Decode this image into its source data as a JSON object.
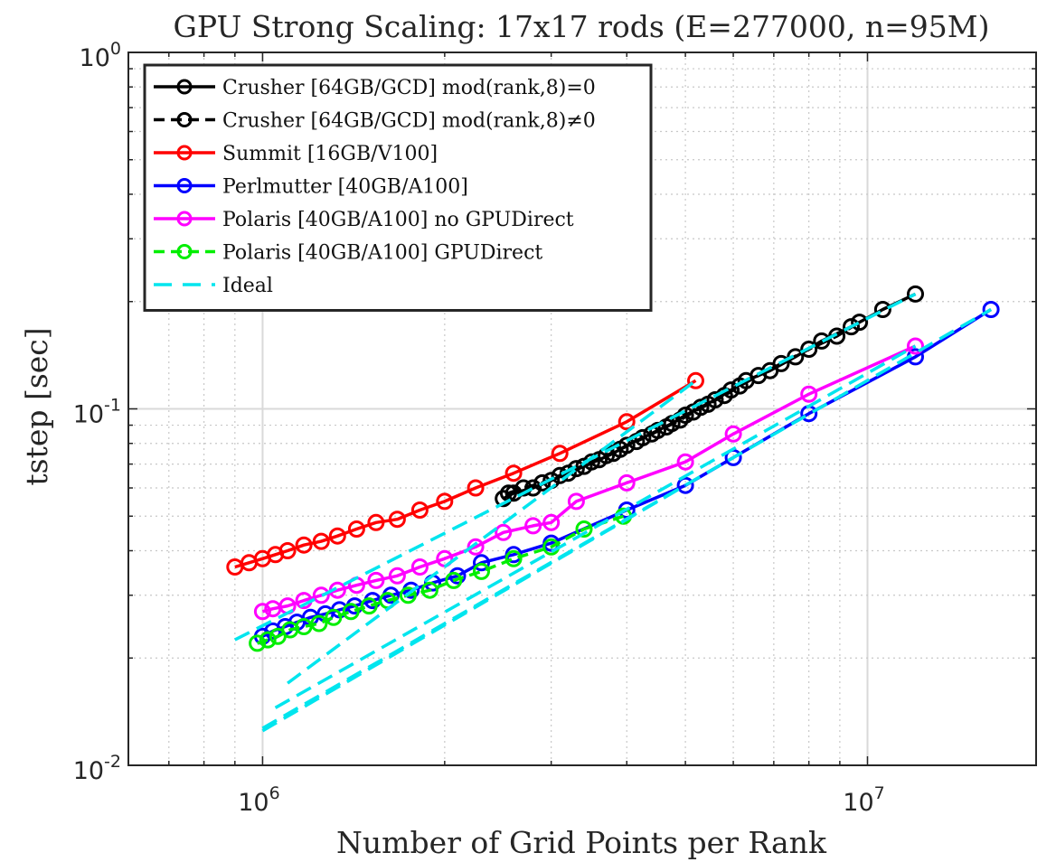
{
  "chart_data": {
    "type": "line",
    "title": "GPU Strong Scaling: 17x17 rods (E=277000, n=95M)",
    "xlabel": "Number of Grid Points per Rank",
    "ylabel": "tstep [sec]",
    "xscale": "log",
    "yscale": "log",
    "xlim": [
      600000,
      19000000
    ],
    "ylim": [
      0.01,
      1
    ],
    "grid": true,
    "legend_position": "top-left",
    "x_ticks": [
      {
        "value": 1000000,
        "base": "10",
        "exp": "6"
      },
      {
        "value": 10000000,
        "base": "10",
        "exp": "7"
      }
    ],
    "y_ticks": [
      {
        "value": 0.01,
        "base": "10",
        "exp": "-2"
      },
      {
        "value": 0.1,
        "base": "10",
        "exp": "-1"
      },
      {
        "value": 1,
        "base": "10",
        "exp": "0"
      }
    ],
    "series": [
      {
        "name": "Crusher [64GB/GCD] mod(rank,8)=0",
        "color": "#000000",
        "dash": "solid",
        "marker": "circle",
        "x": [
          2500000,
          2600000,
          2800000,
          3000000,
          3200000,
          3400000,
          3600000,
          3800000,
          4000000,
          4250000,
          4500000,
          4750000,
          5000000,
          5300000,
          5600000,
          5950000,
          6300000,
          6900000,
          7600000,
          8400000,
          9400000,
          10600000,
          12000000
        ],
        "y": [
          0.056,
          0.058,
          0.06,
          0.063,
          0.066,
          0.069,
          0.072,
          0.075,
          0.079,
          0.083,
          0.087,
          0.091,
          0.096,
          0.101,
          0.106,
          0.113,
          0.12,
          0.128,
          0.14,
          0.155,
          0.17,
          0.19,
          0.21
        ]
      },
      {
        "name": "Crusher [64GB/GCD] mod(rank,8)≠0",
        "color": "#000000",
        "dash": "dashed",
        "marker": "circle",
        "x": [
          2550000,
          2700000,
          2900000,
          3100000,
          3300000,
          3500000,
          3700000,
          3900000,
          4150000,
          4400000,
          4650000,
          4900000,
          5150000,
          5450000,
          5800000,
          6150000,
          6600000,
          7200000,
          8000000,
          8900000,
          9700000
        ],
        "y": [
          0.058,
          0.06,
          0.062,
          0.065,
          0.068,
          0.071,
          0.074,
          0.077,
          0.081,
          0.085,
          0.089,
          0.093,
          0.098,
          0.103,
          0.109,
          0.116,
          0.124,
          0.134,
          0.147,
          0.16,
          0.175
        ]
      },
      {
        "name": "Summit [16GB/V100]",
        "color": "#ff0000",
        "dash": "solid",
        "marker": "circle",
        "x": [
          900000,
          950000,
          1000000,
          1050000,
          1100000,
          1170000,
          1250000,
          1330000,
          1430000,
          1540000,
          1670000,
          1820000,
          2000000,
          2250000,
          2600000,
          3100000,
          4000000,
          5200000
        ],
        "y": [
          0.036,
          0.037,
          0.038,
          0.039,
          0.04,
          0.0415,
          0.0425,
          0.044,
          0.046,
          0.048,
          0.049,
          0.052,
          0.055,
          0.06,
          0.066,
          0.075,
          0.092,
          0.12
        ]
      },
      {
        "name": "Perlmutter [40GB/A100]",
        "color": "#0000ff",
        "dash": "solid",
        "marker": "circle",
        "x": [
          1000000,
          1040000,
          1090000,
          1140000,
          1200000,
          1270000,
          1340000,
          1420000,
          1520000,
          1630000,
          1760000,
          1910000,
          2100000,
          2300000,
          2600000,
          3000000,
          4000000,
          5000000,
          6000000,
          8000000,
          12000000,
          16000000
        ],
        "y": [
          0.023,
          0.0238,
          0.0245,
          0.0252,
          0.026,
          0.0266,
          0.0273,
          0.028,
          0.029,
          0.03,
          0.031,
          0.0325,
          0.034,
          0.037,
          0.039,
          0.042,
          0.052,
          0.061,
          0.073,
          0.097,
          0.14,
          0.19
        ]
      },
      {
        "name": "Polaris [40GB/A100] no GPUDirect",
        "color": "#ff00ff",
        "dash": "solid",
        "marker": "circle",
        "x": [
          1000000,
          1040000,
          1100000,
          1170000,
          1250000,
          1330000,
          1430000,
          1540000,
          1670000,
          1820000,
          2000000,
          2250000,
          2500000,
          2800000,
          3000000,
          3300000,
          4000000,
          5000000,
          6000000,
          8000000,
          12000000
        ],
        "y": [
          0.027,
          0.0275,
          0.028,
          0.029,
          0.03,
          0.031,
          0.032,
          0.033,
          0.034,
          0.036,
          0.038,
          0.041,
          0.045,
          0.047,
          0.048,
          0.055,
          0.062,
          0.071,
          0.085,
          0.11,
          0.15
        ]
      },
      {
        "name": "Polaris [40GB/A100] GPUDirect",
        "color": "#00ee00",
        "dash": "dashed",
        "marker": "circle",
        "x": [
          980000,
          1020000,
          1060000,
          1110000,
          1170000,
          1240000,
          1310000,
          1400000,
          1500000,
          1610000,
          1740000,
          1890000,
          2070000,
          2300000,
          2600000,
          3000000,
          3400000,
          3950000
        ],
        "y": [
          0.022,
          0.0225,
          0.023,
          0.024,
          0.0245,
          0.025,
          0.026,
          0.027,
          0.028,
          0.029,
          0.03,
          0.031,
          0.033,
          0.035,
          0.038,
          0.041,
          0.046,
          0.05
        ]
      },
      {
        "name": "Ideal",
        "color": "#00e5ee",
        "dash": "dashed",
        "marker": "none",
        "lines": [
          {
            "x": [
              900000,
              12000000
            ],
            "y": [
              0.0225,
              0.21
            ]
          },
          {
            "x": [
              1000000,
              16000000
            ],
            "y": [
              0.0127,
              0.19
            ]
          },
          {
            "x": [
              1050000,
              12000000
            ],
            "y": [
              0.0145,
              0.15
            ]
          },
          {
            "x": [
              1100000,
              5200000
            ],
            "y": [
              0.017,
              0.12
            ]
          },
          {
            "x": [
              1000000,
              5000000
            ],
            "y": [
              0.0125,
              0.061
            ]
          }
        ]
      }
    ]
  }
}
